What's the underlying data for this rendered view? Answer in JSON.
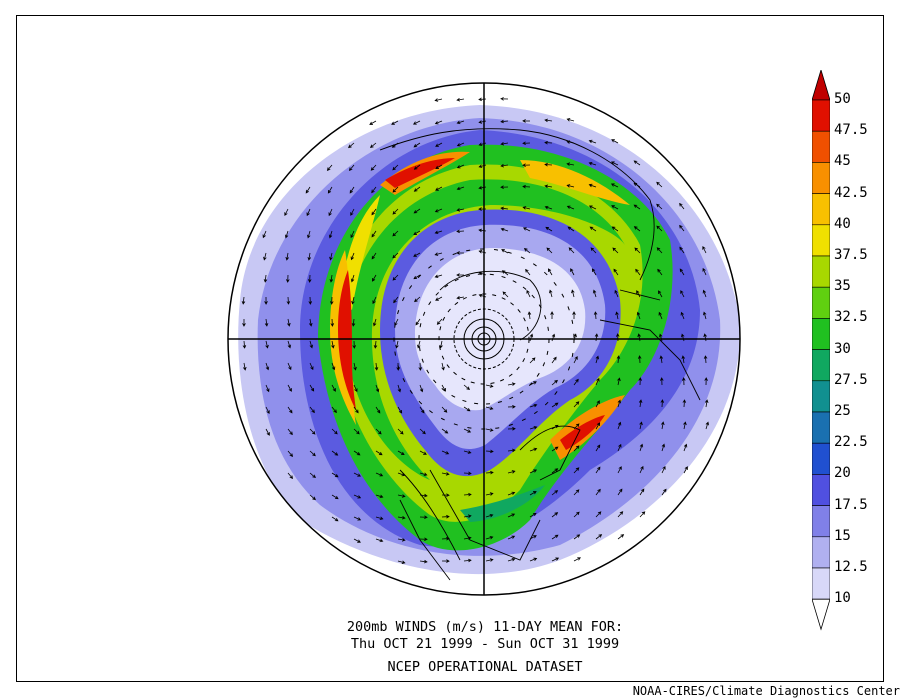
{
  "title_line1": "200mb WINDS (m/s)   11-DAY MEAN FOR:",
  "title_line2": "Thu OCT 21 1999 - Sun OCT 31 1999",
  "dataset": "NCEP OPERATIONAL DATASET",
  "credit": "NOAA-CIRES/Climate Diagnostics Center",
  "colorbar": {
    "levels": [
      "10",
      "12.5",
      "15",
      "17.5",
      "20",
      "22.5",
      "25",
      "27.5",
      "30",
      "32.5",
      "35",
      "37.5",
      "40",
      "42.5",
      "45",
      "47.5",
      "50"
    ],
    "colors": [
      "#ffffff",
      "#d8d8f8",
      "#b0b0f0",
      "#8080e8",
      "#5050e0",
      "#2050d0",
      "#1a70b0",
      "#119090",
      "#10a860",
      "#20c020",
      "#60d010",
      "#a8d800",
      "#f0e000",
      "#f8c000",
      "#f89000",
      "#f05000",
      "#e01000",
      "#c00000"
    ]
  }
}
